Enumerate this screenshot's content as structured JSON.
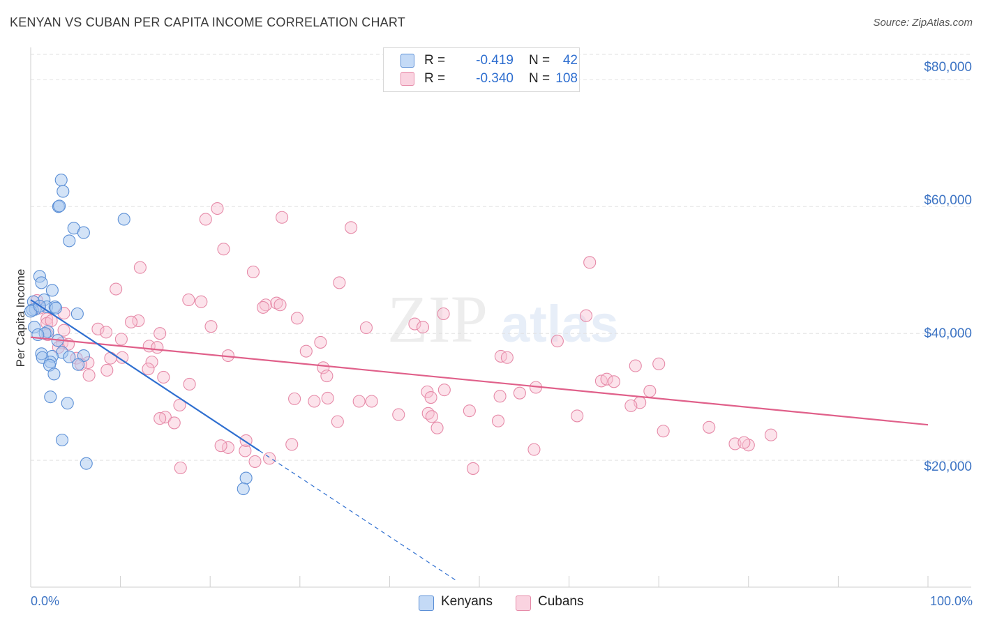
{
  "title": "KENYAN VS CUBAN PER CAPITA INCOME CORRELATION CHART",
  "source": "Source: ZipAtlas.com",
  "legend": {
    "rows": [
      {
        "r_label": "R =",
        "r_value": "-0.419",
        "n_label": "N =",
        "n_value": "42"
      },
      {
        "r_label": "R =",
        "r_value": "-0.340",
        "n_label": "N =",
        "n_value": "108"
      }
    ],
    "bottom": [
      "Kenyans",
      "Cubans"
    ]
  },
  "colors": {
    "kenyan_fill": "#a8c8f0",
    "kenyan_stroke": "#5b8fd6",
    "kenyan_line": "#2f6fd0",
    "cuban_fill": "#f8c0d2",
    "cuban_stroke": "#e68aa8",
    "cuban_line": "#e0608a",
    "axis_text": "#3d74c4"
  },
  "watermark": {
    "zip": "ZIP",
    "atlas": "atlas"
  },
  "chart_data": {
    "type": "scatter",
    "title": "KENYAN VS CUBAN PER CAPITA INCOME CORRELATION CHART",
    "xlabel": "",
    "ylabel": "Per Capita Income",
    "xlim": [
      0,
      100
    ],
    "ylim": [
      0,
      84000
    ],
    "x_tick_labels": [
      "0.0%",
      "100.0%"
    ],
    "y_ticks": [
      20000,
      40000,
      60000,
      80000
    ],
    "y_tick_labels": [
      "$20,000",
      "$40,000",
      "$60,000",
      "$80,000"
    ],
    "grid": true,
    "series": [
      {
        "name": "Kenyans",
        "r": -0.419,
        "n": 42,
        "trend": {
          "x0": 0,
          "y0": 45300,
          "x1": 25.5,
          "y1": 21500,
          "dash_to_x": 47.5
        },
        "points": [
          [
            3.4,
            64200
          ],
          [
            3.6,
            62400
          ],
          [
            3.1,
            60000
          ],
          [
            3.2,
            60100
          ],
          [
            10.4,
            58000
          ],
          [
            4.8,
            56600
          ],
          [
            5.9,
            55900
          ],
          [
            4.3,
            54600
          ],
          [
            1.0,
            49000
          ],
          [
            1.2,
            48000
          ],
          [
            2.4,
            46800
          ],
          [
            1.5,
            45300
          ],
          [
            0.3,
            45000
          ],
          [
            1.8,
            44200
          ],
          [
            2.7,
            44200
          ],
          [
            2.8,
            44000
          ],
          [
            0.5,
            43800
          ],
          [
            0.2,
            43700
          ],
          [
            0.0,
            43500
          ],
          [
            5.2,
            43100
          ],
          [
            0.4,
            41000
          ],
          [
            1.9,
            40300
          ],
          [
            1.6,
            40000
          ],
          [
            0.8,
            39800
          ],
          [
            3.0,
            38900
          ],
          [
            3.5,
            37000
          ],
          [
            1.2,
            36800
          ],
          [
            2.4,
            36400
          ],
          [
            1.3,
            36200
          ],
          [
            4.3,
            36300
          ],
          [
            5.9,
            36500
          ],
          [
            2.2,
            35500
          ],
          [
            2.1,
            35000
          ],
          [
            5.3,
            35100
          ],
          [
            2.6,
            33600
          ],
          [
            2.2,
            30000
          ],
          [
            4.1,
            29000
          ],
          [
            3.5,
            23200
          ],
          [
            6.2,
            19500
          ],
          [
            24.0,
            17200
          ],
          [
            23.7,
            15500
          ],
          [
            1.0,
            44300
          ]
        ]
      },
      {
        "name": "Cubans",
        "r": -0.34,
        "n": 108,
        "trend": {
          "x0": 0,
          "y0": 39400,
          "x1": 100,
          "y1": 25600
        },
        "points": [
          [
            20.8,
            59700
          ],
          [
            19.5,
            58000
          ],
          [
            28.0,
            58300
          ],
          [
            35.7,
            56700
          ],
          [
            21.5,
            53300
          ],
          [
            12.2,
            50400
          ],
          [
            24.8,
            49700
          ],
          [
            34.4,
            48000
          ],
          [
            62.3,
            51200
          ],
          [
            9.5,
            47000
          ],
          [
            17.6,
            45300
          ],
          [
            19.0,
            45000
          ],
          [
            1.0,
            44000
          ],
          [
            26.2,
            44500
          ],
          [
            25.9,
            44100
          ],
          [
            27.4,
            44800
          ],
          [
            27.8,
            44500
          ],
          [
            1.8,
            42300
          ],
          [
            3.7,
            43200
          ],
          [
            29.7,
            42400
          ],
          [
            12.0,
            42000
          ],
          [
            46.0,
            43100
          ],
          [
            61.9,
            42800
          ],
          [
            11.2,
            41800
          ],
          [
            20.1,
            41100
          ],
          [
            42.8,
            41500
          ],
          [
            43.7,
            41000
          ],
          [
            37.4,
            40900
          ],
          [
            7.5,
            40700
          ],
          [
            8.4,
            40200
          ],
          [
            14.4,
            40000
          ],
          [
            3.7,
            40500
          ],
          [
            1.9,
            39800
          ],
          [
            10.1,
            39100
          ],
          [
            3.5,
            38500
          ],
          [
            4.2,
            38300
          ],
          [
            58.7,
            38800
          ],
          [
            32.3,
            38600
          ],
          [
            13.2,
            38000
          ],
          [
            14.1,
            37800
          ],
          [
            30.7,
            37200
          ],
          [
            1.8,
            41600
          ],
          [
            3.1,
            37800
          ],
          [
            22.0,
            36500
          ],
          [
            8.9,
            36100
          ],
          [
            10.2,
            36200
          ],
          [
            52.4,
            36400
          ],
          [
            53.1,
            36200
          ],
          [
            5.1,
            36100
          ],
          [
            6.4,
            35400
          ],
          [
            5.6,
            35100
          ],
          [
            13.5,
            35500
          ],
          [
            32.6,
            34600
          ],
          [
            33.0,
            33300
          ],
          [
            13.1,
            34400
          ],
          [
            8.5,
            34200
          ],
          [
            14.8,
            33100
          ],
          [
            6.5,
            33400
          ],
          [
            63.6,
            32500
          ],
          [
            64.2,
            32800
          ],
          [
            65.0,
            32400
          ],
          [
            67.4,
            34900
          ],
          [
            70.0,
            35200
          ],
          [
            17.7,
            32000
          ],
          [
            56.3,
            31500
          ],
          [
            46.1,
            31100
          ],
          [
            44.2,
            30800
          ],
          [
            54.5,
            30600
          ],
          [
            69.0,
            30900
          ],
          [
            52.3,
            30100
          ],
          [
            44.6,
            29900
          ],
          [
            29.4,
            29700
          ],
          [
            33.1,
            29800
          ],
          [
            36.6,
            29300
          ],
          [
            38.0,
            29300
          ],
          [
            31.6,
            29300
          ],
          [
            16.6,
            28700
          ],
          [
            67.9,
            29100
          ],
          [
            66.9,
            28600
          ],
          [
            48.9,
            27800
          ],
          [
            41.0,
            27200
          ],
          [
            44.3,
            27400
          ],
          [
            44.7,
            26900
          ],
          [
            60.9,
            27000
          ],
          [
            15.0,
            26800
          ],
          [
            14.4,
            26600
          ],
          [
            16.0,
            25900
          ],
          [
            34.2,
            26100
          ],
          [
            52.1,
            26200
          ],
          [
            45.3,
            25100
          ],
          [
            75.6,
            25200
          ],
          [
            70.5,
            24600
          ],
          [
            82.5,
            24000
          ],
          [
            16.7,
            18800
          ],
          [
            22.0,
            22000
          ],
          [
            21.2,
            22300
          ],
          [
            29.1,
            22500
          ],
          [
            78.5,
            22600
          ],
          [
            80.0,
            22400
          ],
          [
            79.5,
            22800
          ],
          [
            56.1,
            21700
          ],
          [
            23.9,
            21500
          ],
          [
            25.0,
            19800
          ],
          [
            26.6,
            20300
          ],
          [
            24.0,
            23100
          ],
          [
            49.3,
            18700
          ],
          [
            0.7,
            45200
          ],
          [
            2.3,
            42000
          ]
        ]
      }
    ]
  }
}
